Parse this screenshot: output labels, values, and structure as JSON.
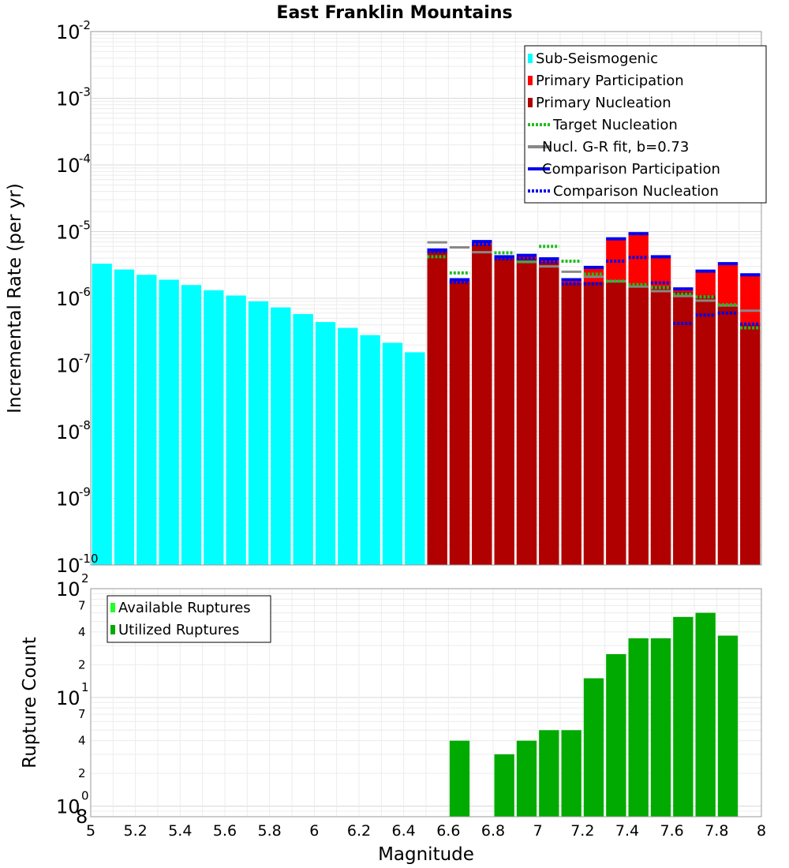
{
  "chart_data": [
    {
      "id": "rates",
      "type": "bar",
      "title": "East Franklin Mountains",
      "xlabel": "",
      "ylabel": "Incremental Rate (per yr)",
      "yscale": "log",
      "ylim": [
        1e-10,
        0.01
      ],
      "xlim": [
        5,
        8
      ],
      "grid": true,
      "legend_position": "top-right",
      "y_ticks": [
        {
          "base": "10",
          "exp": "-10",
          "value": 1e-10
        },
        {
          "base": "10",
          "exp": "-9",
          "value": 1e-09
        },
        {
          "base": "10",
          "exp": "-8",
          "value": 1e-08
        },
        {
          "base": "10",
          "exp": "-7",
          "value": 1e-07
        },
        {
          "base": "10",
          "exp": "-6",
          "value": 1e-06
        },
        {
          "base": "10",
          "exp": "-5",
          "value": 1e-05
        },
        {
          "base": "10",
          "exp": "-4",
          "value": 0.0001
        },
        {
          "base": "10",
          "exp": "-3",
          "value": 0.001
        },
        {
          "base": "10",
          "exp": "-2",
          "value": 0.01
        }
      ],
      "bin_width": 0.1,
      "legend": [
        {
          "label": "Sub-Seismogenic",
          "style": "bar",
          "color": "#00ffff"
        },
        {
          "label": "Primary Participation",
          "style": "bar",
          "color": "#ff0000"
        },
        {
          "label": "Primary Nucleation",
          "style": "bar",
          "color": "#b00000"
        },
        {
          "label": "Target Nucleation",
          "style": "dotted",
          "color": "#22bb22"
        },
        {
          "label": "Nucl. G-R fit, b=0.73",
          "style": "solid",
          "color": "#888888"
        },
        {
          "label": "Comparison Participation",
          "style": "solid",
          "color": "#0000ee"
        },
        {
          "label": "Comparison Nucleation",
          "style": "dotted",
          "color": "#0000ee"
        }
      ],
      "series": [
        {
          "name": "Sub-Seismogenic",
          "color": "#00ffff",
          "kind": "bar",
          "x": [
            5.05,
            5.15,
            5.25,
            5.35,
            5.45,
            5.55,
            5.65,
            5.75,
            5.85,
            5.95,
            6.05,
            6.15,
            6.25,
            6.35,
            6.45
          ],
          "values": [
            3.3e-06,
            2.7e-06,
            2.25e-06,
            1.9e-06,
            1.58e-06,
            1.32e-06,
            1.1e-06,
            9e-07,
            7.3e-07,
            5.8e-07,
            4.4e-07,
            3.6e-07,
            2.8e-07,
            2.15e-07,
            1.55e-07
          ]
        },
        {
          "name": "Primary Participation",
          "color": "#ff0000",
          "kind": "bar",
          "x": [
            6.55,
            6.65,
            6.75,
            6.85,
            6.95,
            7.05,
            7.15,
            7.25,
            7.35,
            7.45,
            7.55,
            7.65,
            7.75,
            7.85,
            7.95
          ],
          "values": [
            5.2e-06,
            1.85e-06,
            6.9e-06,
            4.1e-06,
            4.3e-06,
            3.8e-06,
            1.85e-06,
            2.8e-06,
            7.6e-06,
            9.2e-06,
            4.1e-06,
            1.35e-06,
            2.5e-06,
            3.2e-06,
            2.2e-06
          ]
        },
        {
          "name": "Primary Nucleation",
          "color": "#b00000",
          "kind": "bar",
          "x": [
            6.55,
            6.65,
            6.75,
            6.85,
            6.95,
            7.05,
            7.15,
            7.25,
            7.35,
            7.45,
            7.55,
            7.65,
            7.75,
            7.85,
            7.95
          ],
          "values": [
            5e-06,
            1.75e-06,
            6.4e-06,
            3.9e-06,
            4e-06,
            3.5e-06,
            1.7e-06,
            1.75e-06,
            1.8e-06,
            1.6e-06,
            1.5e-06,
            1.25e-06,
            1.1e-06,
            7.5e-07,
            4e-07
          ]
        },
        {
          "name": "Target Nucleation",
          "color": "#22bb22",
          "kind": "dotted-step",
          "x": [
            6.55,
            6.65,
            6.75,
            6.85,
            6.95,
            7.05,
            7.15,
            7.25,
            7.35,
            7.45,
            7.55,
            7.65,
            7.75,
            7.85,
            7.95
          ],
          "values": [
            4.2e-06,
            2.4e-06,
            6.5e-06,
            4.8e-06,
            3.6e-06,
            6e-06,
            3.6e-06,
            2.3e-06,
            1.8e-06,
            1.6e-06,
            1.45e-06,
            1.15e-06,
            1.05e-06,
            8e-07,
            3.6e-07
          ]
        },
        {
          "name": "Nucl. G-R fit, b=0.73",
          "color": "#888888",
          "kind": "solid-step",
          "x": [
            6.55,
            6.65,
            6.75,
            6.85,
            6.95,
            7.05,
            7.15,
            7.25,
            7.35,
            7.45,
            7.55,
            7.65,
            7.75,
            7.85,
            7.95
          ],
          "values": [
            6.9e-06,
            5.8e-06,
            4.9e-06,
            4.2e-06,
            3.5e-06,
            3e-06,
            2.5e-06,
            2.1e-06,
            1.8e-06,
            1.5e-06,
            1.28e-06,
            1.08e-06,
            9.2e-07,
            7.8e-07,
            6.5e-07
          ]
        },
        {
          "name": "Comparison Participation",
          "color": "#0000ee",
          "kind": "solid-step",
          "x": [
            6.55,
            6.65,
            6.75,
            6.85,
            6.95,
            7.05,
            7.15,
            7.25,
            7.35,
            7.45,
            7.55,
            7.65,
            7.75,
            7.85,
            7.95
          ],
          "values": [
            5.3e-06,
            1.9e-06,
            7.1e-06,
            4.2e-06,
            4.4e-06,
            3.9e-06,
            1.9e-06,
            2.9e-06,
            7.8e-06,
            9.3e-06,
            4.2e-06,
            1.38e-06,
            2.55e-06,
            3.3e-06,
            2.25e-06
          ]
        },
        {
          "name": "Comparison Nucleation",
          "color": "#0000ee",
          "kind": "dotted-step",
          "x": [
            6.55,
            6.65,
            6.75,
            6.85,
            6.95,
            7.05,
            7.15,
            7.25,
            7.35,
            7.45,
            7.55,
            7.65,
            7.75,
            7.85,
            7.95
          ],
          "values": [
            5e-06,
            1.75e-06,
            6.4e-06,
            3.9e-06,
            3.9e-06,
            3.5e-06,
            1.65e-06,
            1.65e-06,
            3.6e-06,
            4.1e-06,
            1.7e-06,
            4.2e-07,
            5.6e-07,
            6e-07,
            4.1e-07
          ]
        }
      ]
    },
    {
      "id": "counts",
      "type": "bar",
      "title": "",
      "xlabel": "Magnitude",
      "ylabel": "Rupture Count",
      "yscale": "log",
      "ylim": [
        0.8,
        100
      ],
      "xlim": [
        5,
        8
      ],
      "grid": true,
      "legend_position": "top-left",
      "x_ticks": [
        "5",
        "5.2",
        "5.4",
        "5.6",
        "5.8",
        "6",
        "6.2",
        "6.4",
        "6.6",
        "6.8",
        "7",
        "7.2",
        "7.4",
        "7.6",
        "7.8",
        "8"
      ],
      "y_major_ticks": [
        {
          "base": "10",
          "exp": "0",
          "value": 1
        },
        {
          "base": "10",
          "exp": "1",
          "value": 10
        },
        {
          "base": "10",
          "exp": "2",
          "value": 100
        }
      ],
      "y_minor_ticks": [
        {
          "label": "8",
          "value": 0.8
        },
        {
          "label": "2",
          "value": 2
        },
        {
          "label": "4",
          "value": 4
        },
        {
          "label": "7",
          "value": 7
        },
        {
          "label": "2",
          "value": 20
        },
        {
          "label": "4",
          "value": 40
        },
        {
          "label": "7",
          "value": 70
        }
      ],
      "legend": [
        {
          "label": "Available Ruptures",
          "style": "bar",
          "color": "#22ff22"
        },
        {
          "label": "Utilized Ruptures",
          "style": "bar",
          "color": "#00aa00"
        }
      ],
      "series": [
        {
          "name": "Utilized Ruptures",
          "color": "#00aa00",
          "x": [
            6.65,
            6.85,
            6.95,
            7.05,
            7.15,
            7.25,
            7.35,
            7.45,
            7.55,
            7.65,
            7.75,
            7.85
          ],
          "values": [
            4,
            3,
            4,
            5,
            5,
            15,
            25,
            35,
            35,
            55,
            60,
            37
          ]
        }
      ]
    }
  ]
}
